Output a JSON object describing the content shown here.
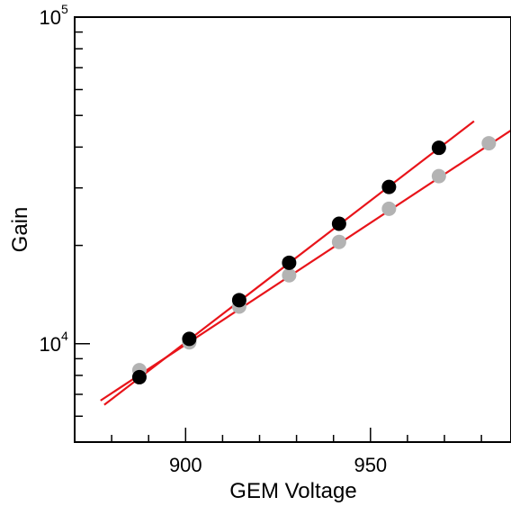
{
  "chart_data": {
    "type": "scatter",
    "title": "",
    "xlabel": "GEM Voltage",
    "ylabel": "Gain",
    "xlim": [
      870,
      988
    ],
    "ylim": [
      5000,
      100000
    ],
    "yscale": "log",
    "x_ticks": [
      {
        "value": 900,
        "label": "900"
      },
      {
        "value": 950,
        "label": "950"
      }
    ],
    "y_ticks": [
      {
        "value": 10000,
        "base": "10",
        "exp": "4"
      },
      {
        "value": 100000,
        "base": "10",
        "exp": "5"
      }
    ],
    "grid": false,
    "legend": "none",
    "series": [
      {
        "color": "#000000",
        "points": [
          {
            "x": 887.5,
            "y": 7900
          },
          {
            "x": 901,
            "y": 10350
          },
          {
            "x": 914.5,
            "y": 13600
          },
          {
            "x": 928,
            "y": 17700
          },
          {
            "x": 941.5,
            "y": 23300
          },
          {
            "x": 955,
            "y": 30200
          },
          {
            "x": 968.5,
            "y": 39800
          }
        ],
        "fit": {
          "x_start": 878,
          "y_start": 6500,
          "x_end": 978,
          "y_end": 48000
        }
      },
      {
        "color": "#b3b3b3",
        "points": [
          {
            "x": 887.5,
            "y": 8300
          },
          {
            "x": 901,
            "y": 10100
          },
          {
            "x": 914.5,
            "y": 13000
          },
          {
            "x": 928,
            "y": 16200
          },
          {
            "x": 941.5,
            "y": 20500
          },
          {
            "x": 955,
            "y": 25900
          },
          {
            "x": 968.5,
            "y": 32600
          },
          {
            "x": 982,
            "y": 41100
          }
        ],
        "fit": {
          "x_start": 877,
          "y_start": 6700,
          "x_end": 988,
          "y_end": 45000
        }
      }
    ],
    "fit_color": "#e8141a"
  }
}
